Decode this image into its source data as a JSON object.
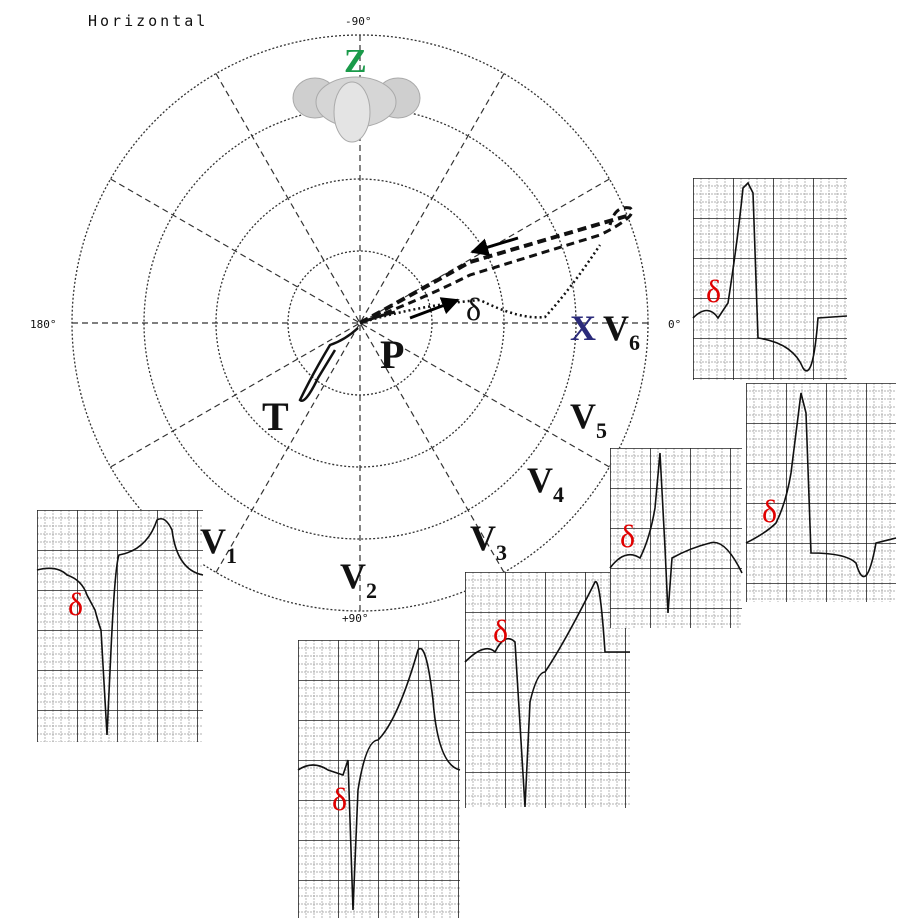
{
  "title": "Horizontal",
  "angles": {
    "top": "-90°",
    "left": "180°",
    "right": "0°",
    "bottom": "+90°"
  },
  "axes": {
    "z": "Z",
    "x": "X"
  },
  "loops": {
    "p": "P",
    "t": "T",
    "delta": "δ"
  },
  "leads": [
    {
      "label": "V",
      "subscript": "1",
      "delta": "δ"
    },
    {
      "label": "V",
      "subscript": "2",
      "delta": "δ"
    },
    {
      "label": "V",
      "subscript": "3",
      "delta": "δ"
    },
    {
      "label": "V",
      "subscript": "4",
      "delta": "δ"
    },
    {
      "label": "V",
      "subscript": "5",
      "delta": "δ"
    },
    {
      "label": "V",
      "subscript": "6",
      "delta": "δ"
    }
  ]
}
